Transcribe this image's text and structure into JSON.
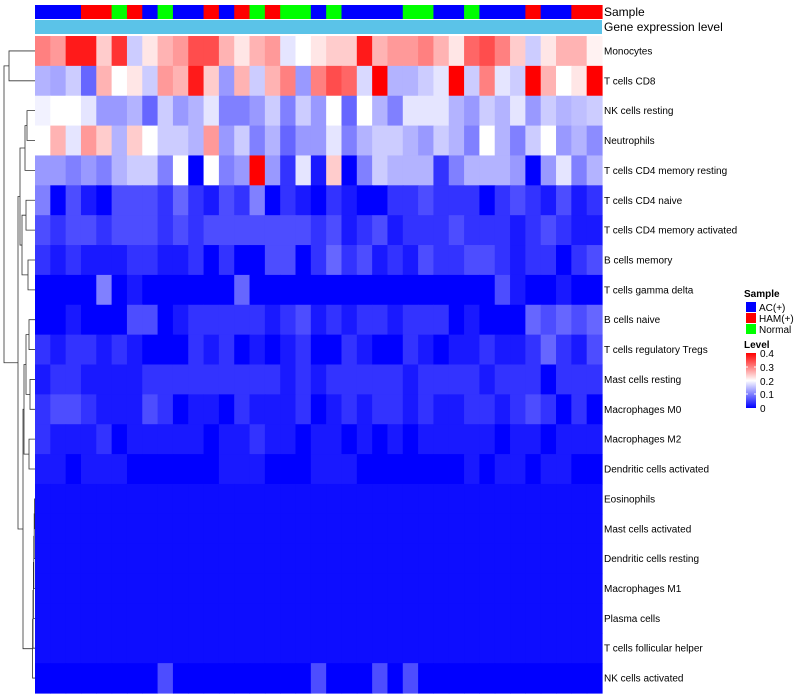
{
  "chart_data": {
    "type": "heatmap",
    "title": "",
    "annotation_rows": [
      "Sample",
      "Gene expression level"
    ],
    "legend_sample": {
      "title": "Sample",
      "entries": [
        {
          "label": "AC(+)",
          "color": "#0000ff"
        },
        {
          "label": "HAM(+)",
          "color": "#ff0000"
        },
        {
          "label": "Normal",
          "color": "#00ff00"
        }
      ]
    },
    "legend_level": {
      "title": "Level",
      "ticks": [
        "0.4",
        "0.3",
        "0.2",
        "0.1",
        "0"
      ],
      "range": [
        0,
        0.4
      ],
      "colors": {
        "low": "#0000ff",
        "mid": "#ffffff",
        "high": "#ff0000"
      }
    },
    "sample_groups": [
      "AC",
      "AC",
      "AC",
      "HAM",
      "HAM",
      "N",
      "HAM",
      "AC",
      "N",
      "AC",
      "AC",
      "HAM",
      "AC",
      "HAM",
      "N",
      "HAM",
      "N",
      "N",
      "AC",
      "N",
      "AC",
      "AC",
      "AC",
      "AC",
      "N",
      "N",
      "AC",
      "AC",
      "N",
      "AC",
      "AC",
      "AC",
      "HAM",
      "AC",
      "AC",
      "HAM",
      "HAM"
    ],
    "expression_bar_color": "#5bc3e8",
    "rows": [
      {
        "label": "Monocytes",
        "values": [
          0.3,
          0.28,
          0.38,
          0.38,
          0.24,
          0.36,
          0.16,
          0.22,
          0.26,
          0.28,
          0.34,
          0.34,
          0.26,
          0.22,
          0.26,
          0.28,
          0.18,
          0.2,
          0.22,
          0.24,
          0.24,
          0.38,
          0.26,
          0.28,
          0.28,
          0.3,
          0.26,
          0.22,
          0.32,
          0.34,
          0.3,
          0.24,
          0.16,
          0.22,
          0.26,
          0.26,
          0.21
        ]
      },
      {
        "label": "T cells CD8",
        "values": [
          0.14,
          0.13,
          0.16,
          0.08,
          0.26,
          0.2,
          0.22,
          0.16,
          0.28,
          0.26,
          0.38,
          0.24,
          0.12,
          0.26,
          0.16,
          0.26,
          0.3,
          0.12,
          0.3,
          0.34,
          0.32,
          0.17,
          0.4,
          0.14,
          0.14,
          0.16,
          0.18,
          0.4,
          0.16,
          0.3,
          0.18,
          0.16,
          0.4,
          0.26,
          0.2,
          0.22,
          0.4
        ]
      },
      {
        "label": "NK cells resting",
        "values": [
          0.19,
          0.2,
          0.2,
          0.18,
          0.12,
          0.12,
          0.14,
          0.08,
          0.16,
          0.12,
          0.14,
          0.18,
          0.1,
          0.1,
          0.12,
          0.16,
          0.1,
          0.16,
          0.12,
          0.2,
          0.08,
          0.2,
          0.14,
          0.1,
          0.18,
          0.18,
          0.18,
          0.14,
          0.12,
          0.16,
          0.14,
          0.18,
          0.12,
          0.16,
          0.14,
          0.15,
          0.16
        ]
      },
      {
        "label": "Neutrophils",
        "values": [
          0.2,
          0.26,
          0.18,
          0.28,
          0.24,
          0.14,
          0.24,
          0.2,
          0.16,
          0.16,
          0.14,
          0.28,
          0.12,
          0.16,
          0.1,
          0.14,
          0.08,
          0.12,
          0.12,
          0.18,
          0.1,
          0.14,
          0.16,
          0.16,
          0.14,
          0.12,
          0.16,
          0.14,
          0.1,
          0.2,
          0.14,
          0.1,
          0.16,
          0.2,
          0.12,
          0.14,
          0.11
        ]
      },
      {
        "label": "T cells CD4 memory resting",
        "values": [
          0.12,
          0.12,
          0.1,
          0.12,
          0.1,
          0.14,
          0.16,
          0.16,
          0.1,
          0.2,
          0.0,
          0.2,
          0.1,
          0.12,
          0.4,
          0.12,
          0.04,
          0.18,
          0.02,
          0.24,
          0.0,
          0.1,
          0.16,
          0.14,
          0.14,
          0.14,
          0.04,
          0.1,
          0.14,
          0.14,
          0.14,
          0.12,
          0.0,
          0.12,
          0.18,
          0.1,
          0.14
        ]
      },
      {
        "label": "T cells CD4 naive",
        "values": [
          0.1,
          0.0,
          0.06,
          0.02,
          0.0,
          0.06,
          0.06,
          0.06,
          0.04,
          0.08,
          0.04,
          0.02,
          0.06,
          0.04,
          0.1,
          0.0,
          0.04,
          0.02,
          0.0,
          0.04,
          0.02,
          0.0,
          0.0,
          0.04,
          0.04,
          0.06,
          0.04,
          0.04,
          0.04,
          0.0,
          0.04,
          0.06,
          0.04,
          0.02,
          0.06,
          0.02,
          0.04
        ]
      },
      {
        "label": "T cells CD4 memory activated",
        "values": [
          0.06,
          0.04,
          0.06,
          0.06,
          0.04,
          0.06,
          0.06,
          0.06,
          0.04,
          0.06,
          0.04,
          0.06,
          0.06,
          0.06,
          0.06,
          0.06,
          0.06,
          0.06,
          0.04,
          0.06,
          0.02,
          0.04,
          0.06,
          0.02,
          0.04,
          0.04,
          0.04,
          0.06,
          0.04,
          0.04,
          0.04,
          0.02,
          0.04,
          0.06,
          0.04,
          0.02,
          0.02
        ]
      },
      {
        "label": "B cells memory",
        "values": [
          0.04,
          0.02,
          0.04,
          0.02,
          0.02,
          0.02,
          0.04,
          0.04,
          0.02,
          0.02,
          0.04,
          0.0,
          0.04,
          0.0,
          0.0,
          0.06,
          0.06,
          0.0,
          0.04,
          0.08,
          0.04,
          0.06,
          0.02,
          0.04,
          0.02,
          0.06,
          0.04,
          0.04,
          0.06,
          0.06,
          0.04,
          0.02,
          0.04,
          0.04,
          0.0,
          0.04,
          0.06
        ]
      },
      {
        "label": "T cells gamma delta",
        "values": [
          0.0,
          0.0,
          0.0,
          0.0,
          0.1,
          0.0,
          0.02,
          0.0,
          0.0,
          0.0,
          0.0,
          0.0,
          0.0,
          0.08,
          0.0,
          0.0,
          0.0,
          0.0,
          0.0,
          0.0,
          0.0,
          0.0,
          0.0,
          0.0,
          0.0,
          0.0,
          0.0,
          0.0,
          0.0,
          0.0,
          0.06,
          0.02,
          0.0,
          0.0,
          0.02,
          0.0,
          0.0
        ]
      },
      {
        "label": "B cells naive",
        "values": [
          0.0,
          0.0,
          0.02,
          0.0,
          0.0,
          0.0,
          0.06,
          0.06,
          0.0,
          0.02,
          0.04,
          0.04,
          0.04,
          0.04,
          0.04,
          0.02,
          0.04,
          0.06,
          0.02,
          0.04,
          0.02,
          0.04,
          0.04,
          0.02,
          0.04,
          0.04,
          0.04,
          0.0,
          0.02,
          0.0,
          0.0,
          0.0,
          0.08,
          0.06,
          0.08,
          0.06,
          0.08
        ]
      },
      {
        "label": "T cells regulatory  Tregs",
        "values": [
          0.04,
          0.02,
          0.04,
          0.04,
          0.02,
          0.04,
          0.02,
          0.0,
          0.0,
          0.0,
          0.04,
          0.02,
          0.04,
          0.0,
          0.02,
          0.0,
          0.02,
          0.04,
          0.0,
          0.0,
          0.04,
          0.02,
          0.0,
          0.0,
          0.04,
          0.02,
          0.0,
          0.02,
          0.02,
          0.04,
          0.02,
          0.02,
          0.04,
          0.08,
          0.04,
          0.02,
          0.06
        ]
      },
      {
        "label": "Mast cells resting",
        "values": [
          0.02,
          0.04,
          0.04,
          0.02,
          0.02,
          0.02,
          0.02,
          0.04,
          0.04,
          0.04,
          0.04,
          0.04,
          0.04,
          0.04,
          0.04,
          0.04,
          0.02,
          0.04,
          0.02,
          0.04,
          0.04,
          0.04,
          0.04,
          0.04,
          0.02,
          0.04,
          0.04,
          0.04,
          0.04,
          0.02,
          0.04,
          0.04,
          0.04,
          0.0,
          0.04,
          0.04,
          0.04
        ]
      },
      {
        "label": "Macrophages M0",
        "values": [
          0.04,
          0.06,
          0.06,
          0.04,
          0.02,
          0.02,
          0.02,
          0.06,
          0.04,
          0.0,
          0.02,
          0.02,
          0.0,
          0.04,
          0.02,
          0.02,
          0.02,
          0.04,
          0.0,
          0.02,
          0.04,
          0.02,
          0.04,
          0.04,
          0.02,
          0.04,
          0.02,
          0.02,
          0.04,
          0.04,
          0.02,
          0.04,
          0.06,
          0.04,
          0.0,
          0.04,
          0.0
        ]
      },
      {
        "label": "Macrophages M2",
        "values": [
          0.04,
          0.02,
          0.02,
          0.02,
          0.04,
          0.0,
          0.02,
          0.02,
          0.02,
          0.02,
          0.02,
          0.0,
          0.02,
          0.02,
          0.04,
          0.02,
          0.02,
          0.0,
          0.02,
          0.02,
          0.0,
          0.02,
          0.0,
          0.02,
          0.0,
          0.02,
          0.02,
          0.02,
          0.02,
          0.02,
          0.0,
          0.02,
          0.02,
          0.0,
          0.02,
          0.02,
          0.02
        ]
      },
      {
        "label": "Dendritic cells activated",
        "values": [
          0.02,
          0.02,
          0.0,
          0.02,
          0.02,
          0.02,
          0.0,
          0.0,
          0.0,
          0.0,
          0.0,
          0.0,
          0.02,
          0.02,
          0.02,
          0.0,
          0.0,
          0.0,
          0.02,
          0.02,
          0.02,
          0.0,
          0.0,
          0.0,
          0.0,
          0.0,
          0.0,
          0.0,
          0.02,
          0.0,
          0.02,
          0.02,
          0.0,
          0.02,
          0.02,
          0.0,
          0.0
        ]
      },
      {
        "label": "Eosinophils",
        "values": [
          0.01,
          0.01,
          0.01,
          0.01,
          0.01,
          0.01,
          0.01,
          0.01,
          0.01,
          0.01,
          0.01,
          0.01,
          0.01,
          0.01,
          0.01,
          0.01,
          0.01,
          0.01,
          0.01,
          0.01,
          0.01,
          0.01,
          0.01,
          0.01,
          0.01,
          0.01,
          0.01,
          0.01,
          0.01,
          0.01,
          0.01,
          0.01,
          0.01,
          0.01,
          0.01,
          0.01,
          0.01
        ]
      },
      {
        "label": "Mast cells activated",
        "values": [
          0.01,
          0.01,
          0.01,
          0.01,
          0.01,
          0.01,
          0.01,
          0.01,
          0.01,
          0.01,
          0.01,
          0.01,
          0.01,
          0.01,
          0.01,
          0.01,
          0.01,
          0.01,
          0.01,
          0.01,
          0.01,
          0.01,
          0.01,
          0.01,
          0.01,
          0.01,
          0.01,
          0.01,
          0.01,
          0.01,
          0.01,
          0.01,
          0.01,
          0.01,
          0.01,
          0.01,
          0.01
        ]
      },
      {
        "label": "Dendritic cells resting",
        "values": [
          0.01,
          0.01,
          0.01,
          0.01,
          0.01,
          0.01,
          0.01,
          0.01,
          0.01,
          0.01,
          0.01,
          0.01,
          0.01,
          0.01,
          0.01,
          0.01,
          0.01,
          0.01,
          0.01,
          0.01,
          0.01,
          0.01,
          0.01,
          0.01,
          0.01,
          0.01,
          0.01,
          0.01,
          0.01,
          0.01,
          0.01,
          0.01,
          0.01,
          0.01,
          0.01,
          0.01,
          0.01
        ]
      },
      {
        "label": "Macrophages M1",
        "values": [
          0.01,
          0.01,
          0.01,
          0.01,
          0.01,
          0.01,
          0.01,
          0.01,
          0.01,
          0.01,
          0.01,
          0.01,
          0.01,
          0.01,
          0.01,
          0.01,
          0.01,
          0.01,
          0.01,
          0.01,
          0.01,
          0.01,
          0.01,
          0.01,
          0.01,
          0.01,
          0.01,
          0.01,
          0.01,
          0.01,
          0.01,
          0.01,
          0.01,
          0.01,
          0.01,
          0.01,
          0.01
        ]
      },
      {
        "label": "Plasma cells",
        "values": [
          0.01,
          0.01,
          0.01,
          0.01,
          0.01,
          0.01,
          0.01,
          0.01,
          0.01,
          0.01,
          0.01,
          0.01,
          0.01,
          0.01,
          0.01,
          0.01,
          0.01,
          0.01,
          0.01,
          0.01,
          0.01,
          0.01,
          0.01,
          0.01,
          0.01,
          0.01,
          0.01,
          0.01,
          0.01,
          0.01,
          0.01,
          0.01,
          0.01,
          0.01,
          0.01,
          0.01,
          0.01
        ]
      },
      {
        "label": "T cells follicular helper",
        "values": [
          0.01,
          0.01,
          0.01,
          0.01,
          0.01,
          0.01,
          0.01,
          0.01,
          0.01,
          0.01,
          0.01,
          0.01,
          0.01,
          0.01,
          0.01,
          0.01,
          0.01,
          0.01,
          0.01,
          0.01,
          0.01,
          0.01,
          0.01,
          0.01,
          0.01,
          0.01,
          0.01,
          0.01,
          0.01,
          0.01,
          0.01,
          0.01,
          0.01,
          0.01,
          0.01,
          0.01,
          0.01
        ]
      },
      {
        "label": "NK cells activated",
        "values": [
          0.0,
          0.0,
          0.0,
          0.0,
          0.0,
          0.0,
          0.0,
          0.0,
          0.06,
          0.0,
          0.0,
          0.0,
          0.0,
          0.0,
          0.0,
          0.0,
          0.0,
          0.0,
          0.06,
          0.0,
          0.0,
          0.0,
          0.06,
          0.0,
          0.06,
          0.0,
          0.0,
          0.0,
          0.0,
          0.0,
          0.0,
          0.0,
          0.0,
          0.0,
          0.0,
          0.0,
          0.0
        ]
      }
    ]
  }
}
